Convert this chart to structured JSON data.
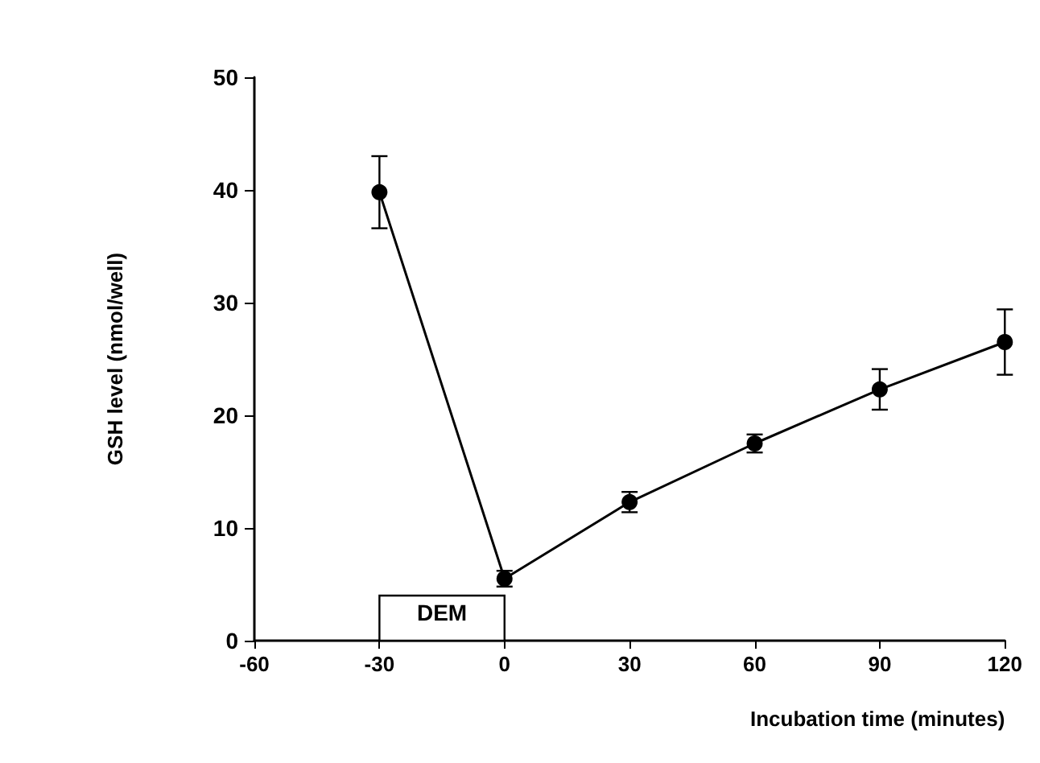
{
  "chart_data": {
    "type": "line",
    "xlabel": "Incubation time (minutes)",
    "ylabel": "GSH level (nmol/well)",
    "x": [
      -30,
      0,
      30,
      60,
      90,
      120
    ],
    "series": [
      {
        "color": "#000000",
        "values": [
          39.8,
          5.5,
          12.3,
          17.5,
          22.3,
          26.5
        ],
        "errors": [
          3.2,
          0.7,
          0.9,
          0.8,
          1.8,
          2.9
        ]
      }
    ],
    "xlim": [
      -60,
      120
    ],
    "xticks": [
      -60,
      -30,
      0,
      30,
      60,
      90,
      120
    ],
    "ylim": [
      0,
      50
    ],
    "yticks": [
      0,
      10,
      20,
      30,
      40,
      50
    ],
    "bands": [
      {
        "axis": "x",
        "from": -30,
        "to": 0,
        "label": "DEM"
      }
    ],
    "marker": "circle",
    "line_style": "solid"
  }
}
